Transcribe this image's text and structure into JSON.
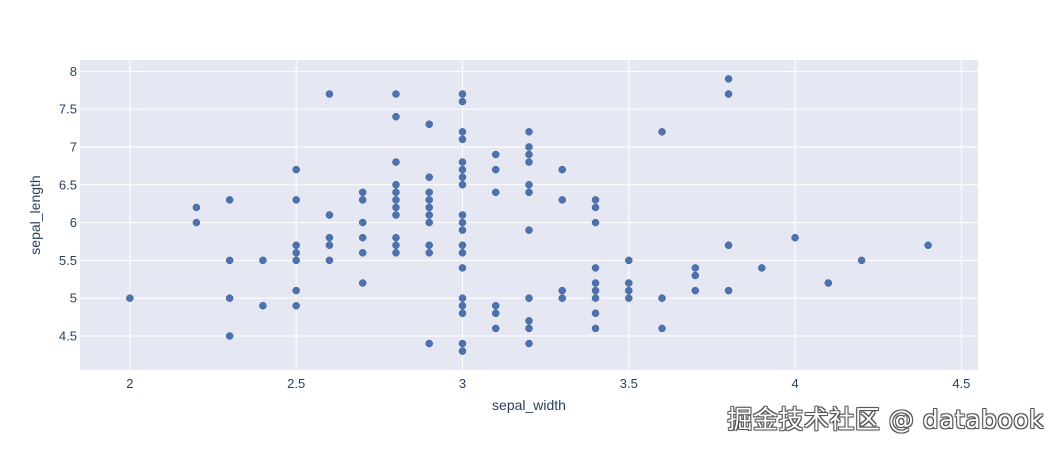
{
  "chart_data": {
    "type": "scatter",
    "xlabel": "sepal_width",
    "ylabel": "sepal_length",
    "xlim": [
      1.85,
      4.55
    ],
    "ylim": [
      4.05,
      8.15
    ],
    "xticks": [
      2,
      2.5,
      3,
      3.5,
      4,
      4.5
    ],
    "yticks": [
      4.5,
      5,
      5.5,
      6,
      6.5,
      7,
      7.5,
      8
    ],
    "grid": true,
    "marker_color": "#4c72b0",
    "plot_bg": "#e5e8f2",
    "points": [
      [
        2.0,
        5.0
      ],
      [
        2.2,
        6.2
      ],
      [
        2.2,
        6.0
      ],
      [
        2.3,
        6.3
      ],
      [
        2.3,
        5.5
      ],
      [
        2.3,
        5.0
      ],
      [
        2.3,
        4.5
      ],
      [
        2.4,
        5.5
      ],
      [
        2.4,
        4.9
      ],
      [
        2.5,
        6.7
      ],
      [
        2.5,
        6.3
      ],
      [
        2.5,
        5.7
      ],
      [
        2.5,
        5.6
      ],
      [
        2.5,
        5.5
      ],
      [
        2.5,
        5.1
      ],
      [
        2.5,
        4.9
      ],
      [
        2.6,
        7.7
      ],
      [
        2.6,
        6.1
      ],
      [
        2.6,
        5.8
      ],
      [
        2.6,
        5.7
      ],
      [
        2.6,
        5.5
      ],
      [
        2.7,
        6.4
      ],
      [
        2.7,
        6.3
      ],
      [
        2.7,
        6.0
      ],
      [
        2.7,
        5.8
      ],
      [
        2.7,
        5.6
      ],
      [
        2.7,
        5.2
      ],
      [
        2.8,
        7.7
      ],
      [
        2.8,
        7.4
      ],
      [
        2.8,
        6.8
      ],
      [
        2.8,
        6.5
      ],
      [
        2.8,
        6.4
      ],
      [
        2.8,
        6.3
      ],
      [
        2.8,
        6.2
      ],
      [
        2.8,
        6.1
      ],
      [
        2.8,
        5.8
      ],
      [
        2.8,
        5.7
      ],
      [
        2.8,
        5.6
      ],
      [
        2.9,
        7.3
      ],
      [
        2.9,
        6.6
      ],
      [
        2.9,
        6.4
      ],
      [
        2.9,
        6.3
      ],
      [
        2.9,
        6.2
      ],
      [
        2.9,
        6.1
      ],
      [
        2.9,
        6.0
      ],
      [
        2.9,
        5.7
      ],
      [
        2.9,
        5.6
      ],
      [
        2.9,
        4.4
      ],
      [
        3.0,
        7.7
      ],
      [
        3.0,
        7.6
      ],
      [
        3.0,
        7.2
      ],
      [
        3.0,
        7.1
      ],
      [
        3.0,
        6.8
      ],
      [
        3.0,
        6.7
      ],
      [
        3.0,
        6.6
      ],
      [
        3.0,
        6.5
      ],
      [
        3.0,
        6.1
      ],
      [
        3.0,
        6.0
      ],
      [
        3.0,
        5.9
      ],
      [
        3.0,
        5.7
      ],
      [
        3.0,
        5.6
      ],
      [
        3.0,
        5.4
      ],
      [
        3.0,
        5.0
      ],
      [
        3.0,
        4.9
      ],
      [
        3.0,
        4.8
      ],
      [
        3.0,
        4.4
      ],
      [
        3.0,
        4.3
      ],
      [
        3.1,
        6.9
      ],
      [
        3.1,
        6.7
      ],
      [
        3.1,
        6.4
      ],
      [
        3.1,
        4.9
      ],
      [
        3.1,
        4.8
      ],
      [
        3.1,
        4.6
      ],
      [
        3.2,
        7.2
      ],
      [
        3.2,
        7.0
      ],
      [
        3.2,
        6.9
      ],
      [
        3.2,
        6.8
      ],
      [
        3.2,
        6.5
      ],
      [
        3.2,
        6.4
      ],
      [
        3.2,
        5.9
      ],
      [
        3.2,
        5.0
      ],
      [
        3.2,
        4.7
      ],
      [
        3.2,
        4.6
      ],
      [
        3.2,
        4.4
      ],
      [
        3.3,
        6.7
      ],
      [
        3.3,
        6.3
      ],
      [
        3.3,
        5.1
      ],
      [
        3.3,
        5.0
      ],
      [
        3.4,
        6.3
      ],
      [
        3.4,
        6.2
      ],
      [
        3.4,
        6.0
      ],
      [
        3.4,
        5.4
      ],
      [
        3.4,
        5.2
      ],
      [
        3.4,
        5.1
      ],
      [
        3.4,
        5.0
      ],
      [
        3.4,
        4.8
      ],
      [
        3.4,
        4.6
      ],
      [
        3.5,
        5.5
      ],
      [
        3.5,
        5.2
      ],
      [
        3.5,
        5.1
      ],
      [
        3.5,
        5.0
      ],
      [
        3.6,
        7.2
      ],
      [
        3.6,
        5.0
      ],
      [
        3.6,
        4.6
      ],
      [
        3.7,
        5.4
      ],
      [
        3.7,
        5.3
      ],
      [
        3.7,
        5.1
      ],
      [
        3.8,
        7.9
      ],
      [
        3.8,
        7.7
      ],
      [
        3.8,
        5.7
      ],
      [
        3.8,
        5.1
      ],
      [
        3.9,
        5.4
      ],
      [
        4.0,
        5.8
      ],
      [
        4.1,
        5.2
      ],
      [
        4.2,
        5.5
      ],
      [
        4.4,
        5.7
      ]
    ]
  },
  "watermark": "掘金技术社区 @ databook"
}
